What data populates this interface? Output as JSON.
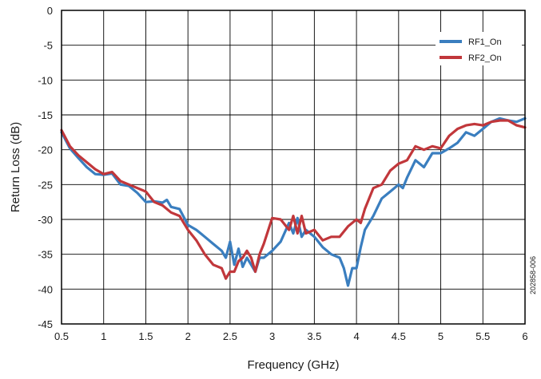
{
  "chart_data": {
    "type": "line",
    "xlabel": "Frequency (GHz)",
    "ylabel": "Return Loss (dB)",
    "xlim": [
      0.5,
      6
    ],
    "ylim": [
      -45,
      0
    ],
    "x_ticks": [
      "0.5",
      "1",
      "1.5",
      "2",
      "2.5",
      "3",
      "3.5",
      "4",
      "4.5",
      "5",
      "5.5",
      "6"
    ],
    "y_ticks": [
      "0",
      "-5",
      "-10",
      "-15",
      "-20",
      "-25",
      "-30",
      "-35",
      "-40",
      "-45"
    ],
    "grid": true,
    "legend_position": "top-right",
    "side_label": "202858-006",
    "series": [
      {
        "name": "RF1_On",
        "color": "#3a7ebf",
        "x": [
          0.5,
          0.6,
          0.7,
          0.8,
          0.9,
          1.0,
          1.1,
          1.2,
          1.3,
          1.4,
          1.5,
          1.6,
          1.7,
          1.75,
          1.8,
          1.9,
          2.0,
          2.1,
          2.2,
          2.3,
          2.4,
          2.45,
          2.5,
          2.55,
          2.6,
          2.65,
          2.7,
          2.75,
          2.8,
          2.85,
          2.9,
          3.0,
          3.1,
          3.2,
          3.25,
          3.3,
          3.35,
          3.4,
          3.5,
          3.6,
          3.7,
          3.8,
          3.85,
          3.9,
          3.95,
          4.0,
          4.05,
          4.1,
          4.2,
          4.3,
          4.4,
          4.5,
          4.55,
          4.6,
          4.7,
          4.8,
          4.9,
          5.0,
          5.1,
          5.2,
          5.3,
          5.4,
          5.5,
          5.6,
          5.7,
          5.8,
          5.9,
          6.0
        ],
        "values": [
          -17.5,
          -19.8,
          -21.2,
          -22.5,
          -23.5,
          -23.6,
          -23.4,
          -25.0,
          -25.2,
          -26.2,
          -27.5,
          -27.4,
          -27.6,
          -27.2,
          -28.2,
          -28.5,
          -30.8,
          -31.5,
          -32.5,
          -33.5,
          -34.5,
          -35.5,
          -33.2,
          -36.5,
          -34.2,
          -36.8,
          -35.5,
          -36.5,
          -37.5,
          -35.5,
          -35.5,
          -34.5,
          -33.2,
          -30.5,
          -32.0,
          -29.8,
          -32.5,
          -31.5,
          -32.5,
          -34.0,
          -35.0,
          -35.5,
          -37.0,
          -39.5,
          -37.0,
          -37.0,
          -34.0,
          -31.5,
          -29.5,
          -27.0,
          -26.0,
          -25.0,
          -25.5,
          -24.0,
          -21.5,
          -22.5,
          -20.5,
          -20.5,
          -19.8,
          -19.0,
          -17.5,
          -18.0,
          -17.0,
          -16.0,
          -15.5,
          -15.8,
          -16.0,
          -15.5
        ]
      },
      {
        "name": "RF2_On",
        "color": "#c1373b",
        "x": [
          0.5,
          0.6,
          0.7,
          0.8,
          0.9,
          1.0,
          1.1,
          1.2,
          1.3,
          1.4,
          1.5,
          1.6,
          1.7,
          1.8,
          1.9,
          2.0,
          2.1,
          2.2,
          2.3,
          2.4,
          2.45,
          2.5,
          2.55,
          2.6,
          2.65,
          2.7,
          2.75,
          2.8,
          2.85,
          2.9,
          3.0,
          3.1,
          3.2,
          3.25,
          3.3,
          3.35,
          3.4,
          3.5,
          3.6,
          3.7,
          3.8,
          3.9,
          4.0,
          4.05,
          4.1,
          4.2,
          4.3,
          4.4,
          4.5,
          4.6,
          4.7,
          4.8,
          4.9,
          5.0,
          5.1,
          5.2,
          5.3,
          5.4,
          5.5,
          5.6,
          5.7,
          5.8,
          5.9,
          6.0
        ],
        "values": [
          -17.2,
          -19.5,
          -20.8,
          -21.8,
          -22.8,
          -23.5,
          -23.2,
          -24.5,
          -25.0,
          -25.5,
          -26.0,
          -27.5,
          -28.0,
          -29.0,
          -29.5,
          -31.5,
          -33.0,
          -35.0,
          -36.5,
          -37.0,
          -38.5,
          -37.5,
          -37.5,
          -36.0,
          -35.5,
          -34.5,
          -35.5,
          -37.5,
          -35.0,
          -33.5,
          -29.8,
          -30.0,
          -31.5,
          -29.5,
          -32.0,
          -29.5,
          -32.0,
          -31.5,
          -33.0,
          -32.5,
          -32.5,
          -31.0,
          -30.0,
          -30.5,
          -28.5,
          -25.5,
          -25.0,
          -23.0,
          -22.0,
          -21.5,
          -19.5,
          -20.0,
          -19.5,
          -19.8,
          -18.0,
          -17.0,
          -16.5,
          -16.3,
          -16.5,
          -16.0,
          -15.8,
          -15.8,
          -16.5,
          -16.8
        ]
      }
    ]
  }
}
